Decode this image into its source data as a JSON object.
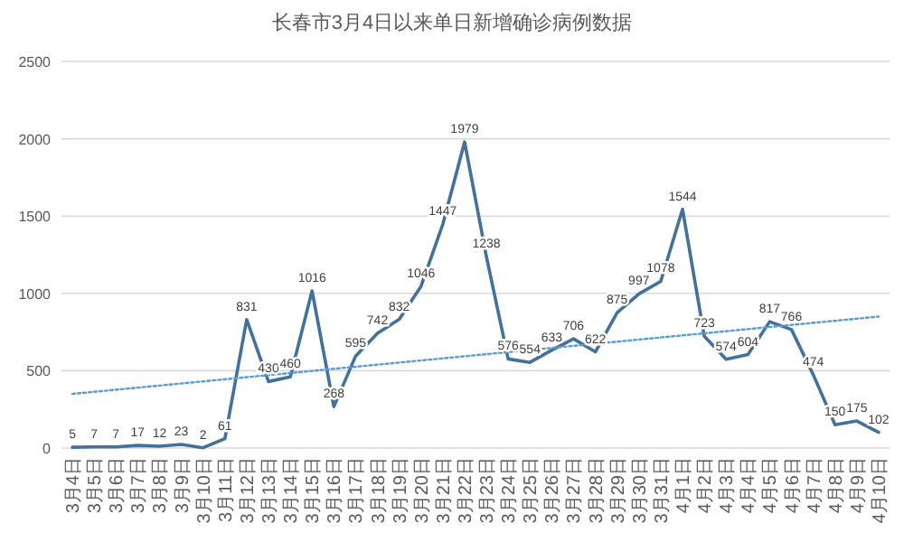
{
  "chart_data": {
    "type": "line",
    "title": "长春市3月4日以来单日新增确诊病例数据",
    "categories": [
      "3月4日",
      "3月5日",
      "3月6日",
      "3月7日",
      "3月8日",
      "3月9日",
      "3月10日",
      "3月11日",
      "3月12日",
      "3月13日",
      "3月14日",
      "3月15日",
      "3月16日",
      "3月17日",
      "3月18日",
      "3月19日",
      "3月20日",
      "3月21日",
      "3月22日",
      "3月23日",
      "3月24日",
      "3月25日",
      "3月26日",
      "3月27日",
      "3月28日",
      "3月29日",
      "3月30日",
      "3月31日",
      "4月1日",
      "4月2日",
      "4月3日",
      "4月4日",
      "4月5日",
      "4月6日",
      "4月7日",
      "4月8日",
      "4月9日",
      "4月10日"
    ],
    "series": [
      {
        "color": "#41719c",
        "line_style": "solid",
        "values": [
          5,
          7,
          7,
          17,
          12,
          23,
          2,
          61,
          831,
          430,
          460,
          1016,
          268,
          595,
          742,
          832,
          1046,
          1447,
          1979,
          1238,
          576,
          554,
          633,
          706,
          622,
          875,
          997,
          1078,
          1544,
          723,
          574,
          604,
          817,
          766,
          474,
          150,
          175,
          102
        ],
        "value_labels": [
          "5",
          "7",
          "7",
          "17",
          "12",
          "23",
          "2",
          "61",
          "831",
          "430",
          "460",
          "1016",
          "268",
          "595",
          "742",
          "832",
          "1046",
          "1447",
          "1979",
          "1238",
          "576",
          "554",
          "633",
          "706",
          "622",
          "875",
          "997",
          "1078",
          "1544",
          "723",
          "574",
          "604",
          "817",
          "766",
          "474",
          "150",
          "175",
          "102"
        ]
      },
      {
        "type": "line",
        "color": "#5b9bd5",
        "line_style": "dotted",
        "x": [
          "3月4日",
          "4月10日"
        ],
        "values": [
          350,
          850
        ]
      }
    ],
    "ylim": [
      0,
      2500
    ],
    "yticks": [
      0,
      500,
      1000,
      1500,
      2000,
      2500
    ],
    "grid": "y",
    "marker": "none"
  }
}
